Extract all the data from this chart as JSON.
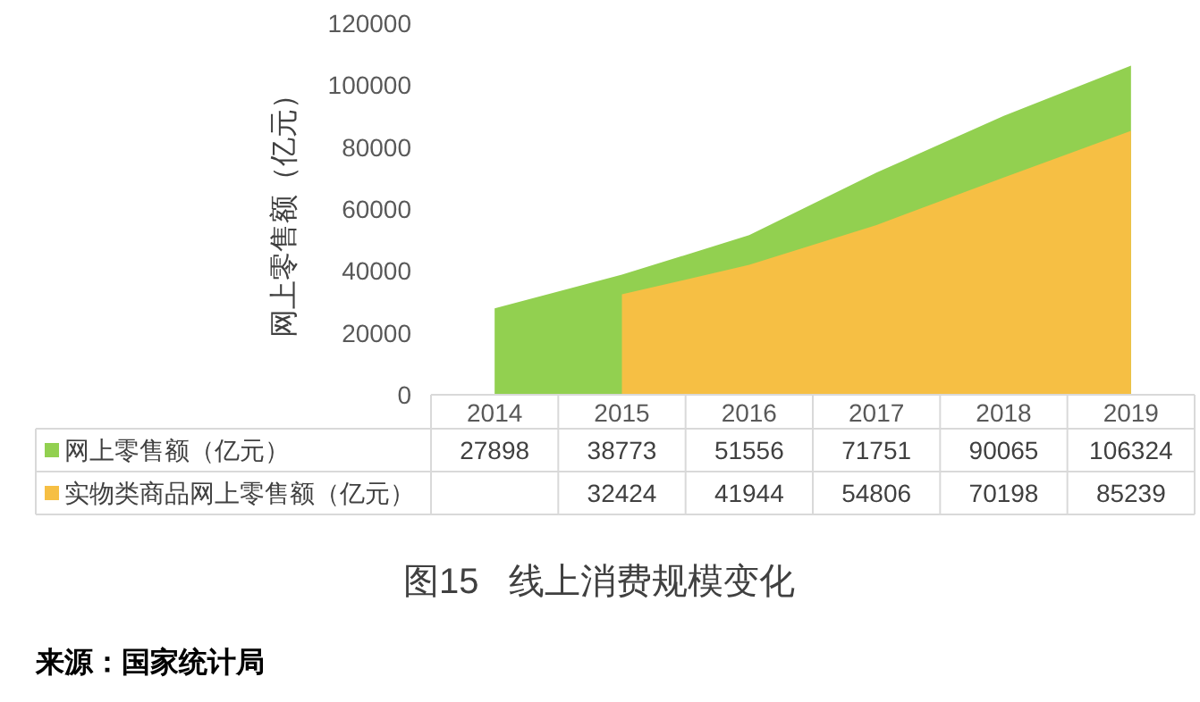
{
  "chart_data": {
    "type": "area",
    "title": "图15   线上消费规模变化",
    "ylabel": "网上零售额（亿元）",
    "categories": [
      "2014",
      "2015",
      "2016",
      "2017",
      "2018",
      "2019"
    ],
    "series": [
      {
        "name": "网上零售额（亿元）",
        "color": "#92d050",
        "values": [
          27898,
          38773,
          51556,
          71751,
          90065,
          106324
        ]
      },
      {
        "name": "实物类商品网上零售额（亿元）",
        "color": "#f6bf44",
        "values": [
          null,
          32424,
          41944,
          54806,
          70198,
          85239
        ]
      }
    ],
    "ylim": [
      0,
      120000
    ],
    "yticks": [
      0,
      20000,
      40000,
      60000,
      80000,
      100000,
      120000
    ],
    "data_labels": true,
    "legend": "bottom",
    "annotations": [
      "来源：国家统计局"
    ]
  }
}
